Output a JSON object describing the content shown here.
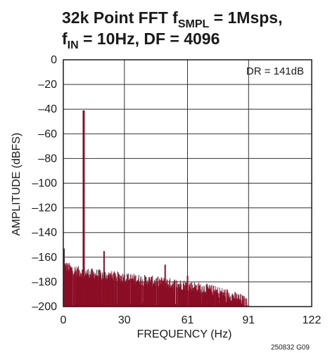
{
  "chart_data": {
    "type": "bar",
    "title": {
      "line1_main": "32k Point FFT f",
      "line1_sub": "SMPL",
      "line1_rest": " = 1Msps,",
      "line2_main": "f",
      "line2_sub": "IN",
      "line2_rest": " = 10Hz, DF = 4096"
    },
    "xlabel": "FREQUENCY (Hz)",
    "ylabel": "AMPLITUDE (dBFS)",
    "xlim": [
      0,
      122
    ],
    "ylim": [
      -200,
      0
    ],
    "x_ticks": [
      0,
      30,
      61,
      91,
      122
    ],
    "x_tick_labels": [
      "0",
      "30",
      "61",
      "91",
      "122"
    ],
    "y_ticks": [
      0,
      -20,
      -40,
      -60,
      -80,
      -100,
      -120,
      -140,
      -160,
      -180,
      -200
    ],
    "y_tick_labels": [
      "0",
      "–20",
      "–40",
      "–60",
      "–80",
      "–100",
      "–120",
      "–140",
      "–160",
      "–180",
      "–200"
    ],
    "annotation": "DR = 141dB",
    "series_color": "#8b0e26",
    "grid": true,
    "noise_floor_envelope": {
      "x": [
        0,
        5,
        10,
        20,
        30,
        40,
        50,
        60,
        70,
        80,
        88,
        91,
        122
      ],
      "y": [
        -168,
        -172,
        -174,
        -176,
        -178,
        -180,
        -182,
        -184,
        -187,
        -191,
        -196,
        -200,
        -200
      ]
    },
    "peaks": [
      {
        "x": 0,
        "y": -153
      },
      {
        "x": 10,
        "y": -41
      },
      {
        "x": 20,
        "y": -155
      },
      {
        "x": 50,
        "y": -166
      },
      {
        "x": 61,
        "y": -175
      }
    ]
  },
  "figure_code": "250832 G09"
}
